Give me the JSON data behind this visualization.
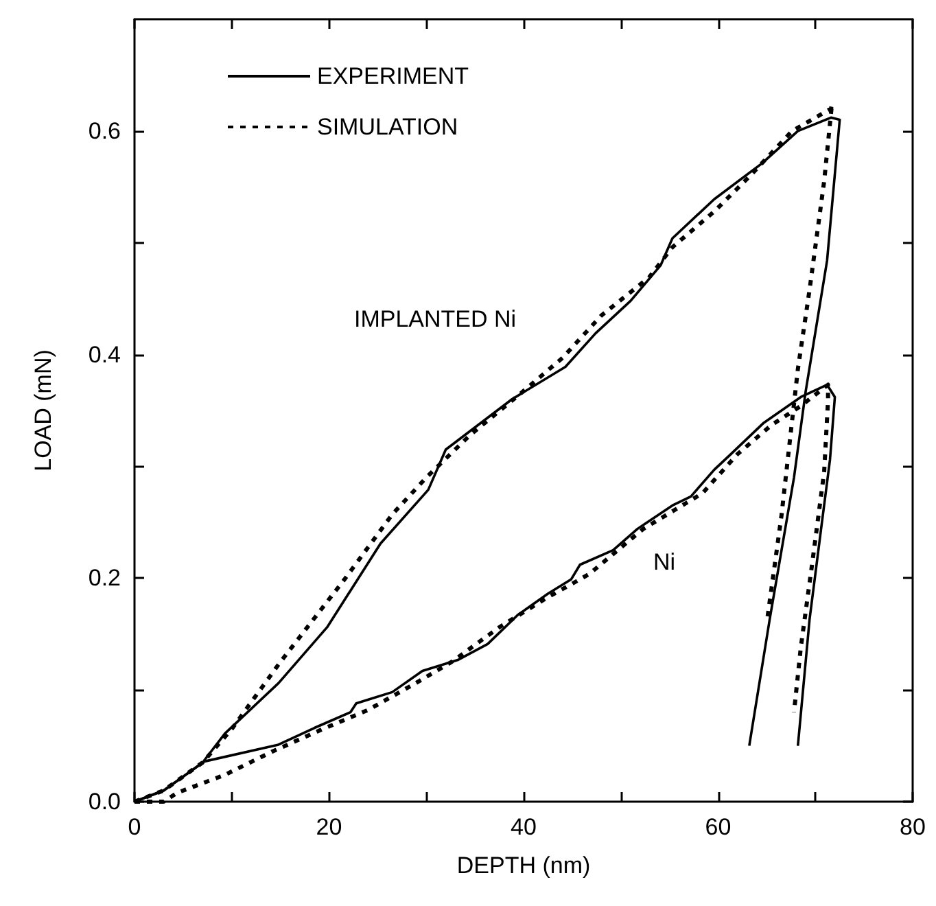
{
  "chart_data": {
    "type": "line",
    "xlabel": "DEPTH (nm)",
    "ylabel": "LOAD (mN)",
    "xlim": [
      0,
      80
    ],
    "ylim": [
      0,
      0.7
    ],
    "xticks": [
      0,
      {
        "value": 10,
        "label": null
      },
      20,
      {
        "value": 30,
        "label": null
      },
      40,
      {
        "value": 50,
        "label": null
      },
      60,
      {
        "value": 70,
        "label": null
      },
      80
    ],
    "yticks": [
      "0.0",
      {
        "value": 0.1,
        "label": null
      },
      {
        "value": 0.2,
        "label": "0.2"
      },
      {
        "value": 0.3,
        "label": null
      },
      {
        "value": 0.4,
        "label": "0.4"
      },
      {
        "value": 0.5,
        "label": null
      },
      {
        "value": 0.6,
        "label": "0.6"
      }
    ],
    "grid": false,
    "legend": "top left",
    "marker": "none",
    "series": [
      {
        "name": "EXPERIMENT",
        "color": "#000000",
        "line_style": "solid",
        "x": [
          0,
          3,
          7,
          9.3,
          14.8,
          19.8,
          25.3,
          30.2,
          32,
          38.8,
          44.3,
          47.4,
          51,
          54.1,
          55.3,
          59.6,
          64.5,
          68.2,
          71.6,
          72.5,
          71.2,
          69,
          67.8,
          65.3,
          63.2
        ],
        "values": [
          0,
          0.01,
          0.035,
          0.061,
          0.106,
          0.156,
          0.231,
          0.279,
          0.315,
          0.36,
          0.389,
          0.419,
          0.448,
          0.48,
          0.504,
          0.539,
          0.571,
          0.6,
          0.612,
          0.61,
          0.484,
          0.367,
          0.29,
          0.163,
          0.05
        ]
      },
      {
        "name": "SIMULATION",
        "color": "#000000",
        "line_style": "dashed",
        "x": [
          0,
          3,
          7,
          10,
          15,
          21.6,
          26.5,
          30,
          34.5,
          39.4,
          44,
          48,
          52.9,
          55.3,
          59.6,
          63.3,
          67.6,
          71.6,
          71.7,
          70.9,
          69.4,
          68.2,
          66.5,
          65
        ],
        "values": [
          0,
          0.01,
          0.035,
          0.065,
          0.125,
          0.199,
          0.257,
          0.29,
          0.328,
          0.363,
          0.397,
          0.435,
          0.469,
          0.496,
          0.528,
          0.56,
          0.6,
          0.62,
          0.624,
          0.555,
          0.458,
          0.387,
          0.255,
          0.16
        ]
      },
      {
        "color": "#000000",
        "line_style": "solid",
        "x": [
          0,
          3,
          7.2,
          14.8,
          18.5,
          22.2,
          22.8,
          26.5,
          29.6,
          33.3,
          36.3,
          39.4,
          42.5,
          44.9,
          45.8,
          49.2,
          51.7,
          55.3,
          57.2,
          59.6,
          61.2,
          64.7,
          68.5,
          71.2,
          72,
          71.5,
          70.6,
          69.4,
          68.2
        ],
        "values": [
          0,
          0.01,
          0.036,
          0.051,
          0.066,
          0.08,
          0.088,
          0.098,
          0.117,
          0.127,
          0.141,
          0.167,
          0.186,
          0.199,
          0.212,
          0.225,
          0.244,
          0.265,
          0.273,
          0.297,
          0.31,
          0.339,
          0.362,
          0.373,
          0.362,
          0.306,
          0.245,
          0.163,
          0.05
        ]
      },
      {
        "color": "#000000",
        "line_style": "dashed",
        "x": [
          0,
          3,
          4.4,
          9.3,
          14.2,
          19.1,
          24,
          28.9,
          32.6,
          37.5,
          42.5,
          45,
          46.8,
          52.3,
          58.4,
          62,
          65.5,
          68.5,
          71.3,
          71.3,
          70.9,
          69.7,
          68.5,
          67.8
        ],
        "values": [
          0,
          0,
          0.008,
          0.024,
          0.045,
          0.064,
          0.082,
          0.106,
          0.125,
          0.156,
          0.183,
          0.195,
          0.204,
          0.244,
          0.276,
          0.311,
          0.337,
          0.354,
          0.373,
          0.359,
          0.295,
          0.215,
          0.138,
          0.08
        ]
      }
    ],
    "annotations": [
      "IMPLANTED Ni",
      "Ni"
    ]
  }
}
